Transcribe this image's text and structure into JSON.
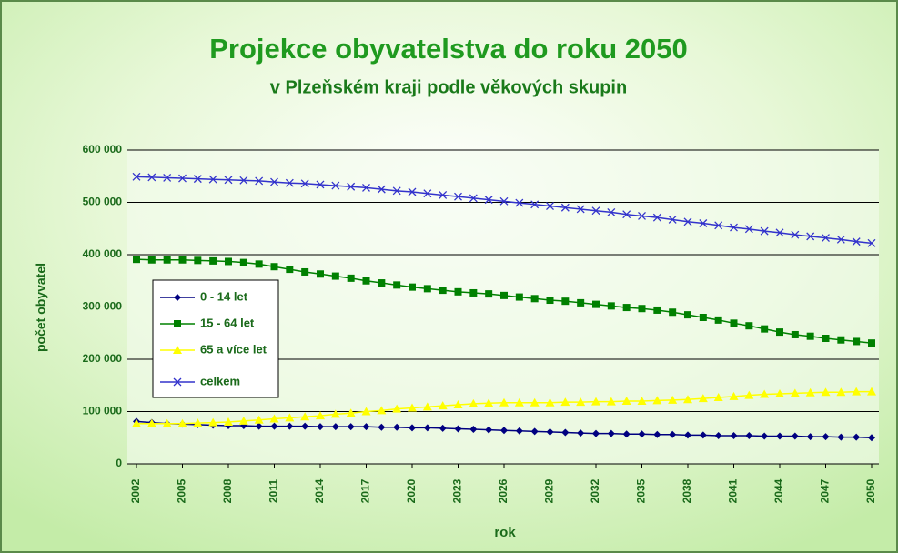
{
  "chart_data": {
    "type": "line",
    "title": "Projekce obyvatelstva do roku 2050",
    "subtitle": "v Plzeňském kraji podle věkových skupin",
    "x_label": "rok",
    "y_label": "počet obyvatel",
    "x": [
      2002,
      2003,
      2004,
      2005,
      2006,
      2007,
      2008,
      2009,
      2010,
      2011,
      2012,
      2013,
      2014,
      2015,
      2016,
      2017,
      2018,
      2019,
      2020,
      2021,
      2022,
      2023,
      2024,
      2025,
      2026,
      2027,
      2028,
      2029,
      2030,
      2031,
      2032,
      2033,
      2034,
      2035,
      2036,
      2037,
      2038,
      2039,
      2040,
      2041,
      2042,
      2043,
      2044,
      2045,
      2046,
      2047,
      2048,
      2049,
      2050
    ],
    "xlim": [
      2002,
      2050
    ],
    "xticks": [
      2002,
      2005,
      2008,
      2011,
      2014,
      2017,
      2020,
      2023,
      2026,
      2029,
      2032,
      2035,
      2038,
      2041,
      2044,
      2047,
      2050
    ],
    "ylim": [
      0,
      600000
    ],
    "yticks": [
      {
        "value": 0,
        "label": "0"
      },
      {
        "value": 100000,
        "label": "100 000"
      },
      {
        "value": 200000,
        "label": "200 000"
      },
      {
        "value": 300000,
        "label": "300 000"
      },
      {
        "value": 400000,
        "label": "400 000"
      },
      {
        "value": 500000,
        "label": "500 000"
      },
      {
        "value": 600000,
        "label": "600 000"
      }
    ],
    "grid": true,
    "series": [
      {
        "name": "0 - 14 let",
        "color": "#000080",
        "marker": "diamond",
        "values": [
          81000,
          79000,
          77000,
          76000,
          75000,
          74000,
          73000,
          73000,
          72000,
          72000,
          72000,
          72000,
          71000,
          71000,
          71000,
          71000,
          70000,
          70000,
          69000,
          69000,
          68000,
          67000,
          66000,
          65000,
          64000,
          63000,
          62000,
          61000,
          60000,
          59000,
          58000,
          58000,
          57000,
          57000,
          56000,
          56000,
          55000,
          55000,
          54000,
          54000,
          54000,
          53000,
          53000,
          53000,
          52000,
          52000,
          51000,
          51000,
          50000
        ]
      },
      {
        "name": "15 - 64 let",
        "color": "#008000",
        "marker": "square",
        "values": [
          391000,
          390000,
          390000,
          390000,
          389000,
          388000,
          387000,
          385000,
          382000,
          377000,
          372000,
          367000,
          363000,
          359000,
          355000,
          350000,
          346000,
          342000,
          338000,
          335000,
          332000,
          329000,
          327000,
          325000,
          322000,
          319000,
          316000,
          313000,
          311000,
          308000,
          305000,
          302000,
          299000,
          297000,
          294000,
          290000,
          285000,
          280000,
          275000,
          269000,
          264000,
          258000,
          252000,
          247000,
          244000,
          240000,
          237000,
          234000,
          231000
        ]
      },
      {
        "name": "65 a více let",
        "color": "#ffff00",
        "marker": "triangle",
        "values": [
          77000,
          77000,
          77000,
          77000,
          78000,
          79000,
          80000,
          82000,
          84000,
          86000,
          88000,
          90000,
          92000,
          95000,
          97000,
          100000,
          102000,
          105000,
          107000,
          109000,
          111000,
          113000,
          115000,
          116000,
          117000,
          117000,
          117000,
          117000,
          118000,
          118000,
          119000,
          119000,
          120000,
          120000,
          121000,
          122000,
          123000,
          125000,
          127000,
          129000,
          131000,
          133000,
          134000,
          135000,
          136000,
          137000,
          137000,
          138000,
          138000
        ]
      },
      {
        "name": "celkem",
        "color": "#3333cc",
        "marker": "x",
        "values": [
          549000,
          548000,
          547000,
          546000,
          545000,
          544000,
          543000,
          542000,
          541000,
          539000,
          537000,
          536000,
          534000,
          532000,
          530000,
          528000,
          525000,
          522000,
          520000,
          517000,
          514000,
          511000,
          508000,
          505000,
          502000,
          499000,
          496000,
          493000,
          490000,
          487000,
          484000,
          481000,
          477000,
          474000,
          471000,
          467000,
          463000,
          460000,
          456000,
          452000,
          449000,
          445000,
          442000,
          438000,
          435000,
          432000,
          429000,
          425000,
          422000
        ]
      }
    ]
  }
}
